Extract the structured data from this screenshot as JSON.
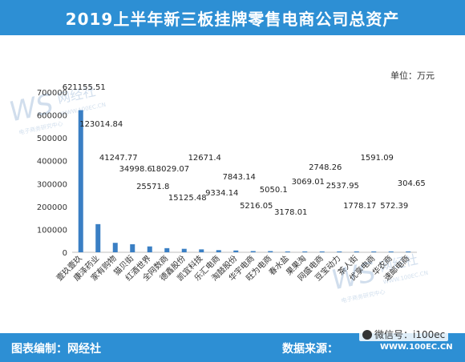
{
  "header": {
    "title": "2019上半年新三板挂牌零售电商公司总资产"
  },
  "unit_label": "单位：万元",
  "footer": {
    "left": "图表编制：网经社",
    "right": "数据来源：",
    "wechat": "微信号：i100ec",
    "site": "WWW.100EC.CN"
  },
  "watermark": {
    "brand": "网经社",
    "sub": "电子商务研究中心",
    "domain": "WWW.100EC.CN"
  },
  "chart_data": {
    "type": "bar",
    "title": "2019上半年新三板挂牌零售电商公司总资产",
    "ylabel": "万元",
    "ylim": [
      0,
      700000
    ],
    "yticks": [
      0,
      100000,
      200000,
      300000,
      400000,
      500000,
      600000,
      700000
    ],
    "grid": false,
    "legend": "none",
    "bar_color": "#3a7fc4",
    "categories": [
      "壹玖壹玖",
      "康泽药业",
      "家有购物",
      "猫贝街",
      "红酒世界",
      "全网数商",
      "德鑫股份",
      "凯宜科技",
      "乐汇电商",
      "淘鼓股份",
      "华宇电商",
      "旺为电商",
      "春水盐",
      "果果淘",
      "网盛电商",
      "豆宝动力",
      "茶人街",
      "优享电商",
      "华农商",
      "速邮电商"
    ],
    "values": [
      621155.51,
      123014.84,
      41247.77,
      34998.6,
      25571.8,
      18029.07,
      15125.48,
      12671.4,
      9334.14,
      7843.14,
      5216.05,
      5050.1,
      3178.01,
      3069.01,
      2748.26,
      2537.95,
      1778.17,
      1591.09,
      572.39,
      304.65
    ],
    "data_labels": [
      "621155.51",
      "123014.84",
      "41247.77",
      "34998.6",
      "25571.8",
      "18029.07",
      "15125.48",
      "12671.4",
      "9334.14",
      "7843.14",
      "5216.05",
      "5050.1",
      "3178.01",
      "3069.01",
      "2748.26",
      "2537.95",
      "1778.17",
      "1591.09",
      "572.39",
      "304.65"
    ]
  }
}
